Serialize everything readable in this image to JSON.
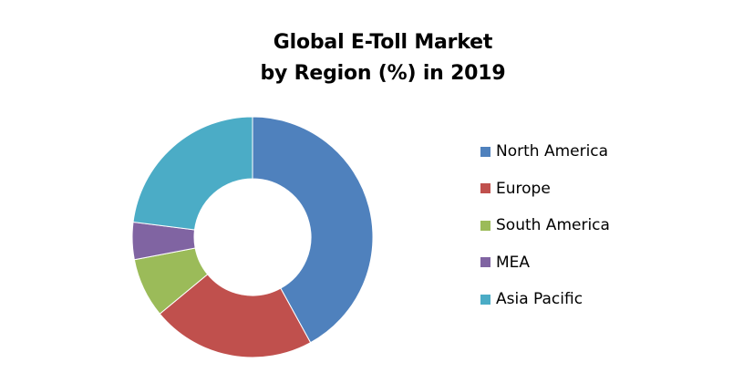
{
  "chart_data": {
    "type": "pie",
    "variant": "donut",
    "title_lines": [
      "Global E-Toll Market",
      "by Region (%) in 2019"
    ],
    "categories": [
      "North America",
      "Europe",
      "South America",
      "MEA",
      "Asia Pacific"
    ],
    "values": [
      42,
      22,
      8,
      5,
      23
    ],
    "unit": "%",
    "colors": [
      "#4F81BD",
      "#C0504D",
      "#9BBB59",
      "#8064A2",
      "#4BACC6"
    ],
    "start_angle_deg": 0,
    "direction": "clockwise",
    "legend_position": "right"
  }
}
